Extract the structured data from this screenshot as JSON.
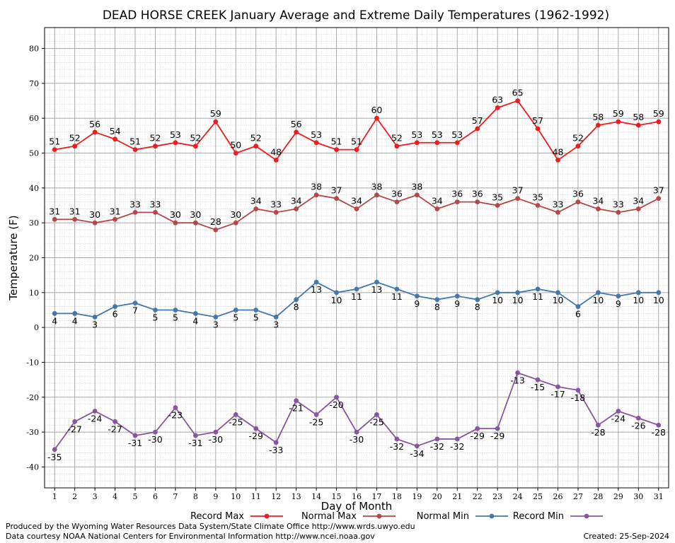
{
  "chart_data": {
    "type": "line",
    "title": "DEAD HORSE CREEK January Average and Extreme Daily Temperatures (1962-1992)",
    "xlabel": "Day of Month",
    "ylabel": "Temperature (F)",
    "xlim": [
      0.5,
      31.5
    ],
    "ylim": [
      -46,
      86
    ],
    "x_ticks": [
      1,
      2,
      3,
      4,
      5,
      6,
      7,
      8,
      9,
      10,
      11,
      12,
      13,
      14,
      15,
      16,
      17,
      18,
      19,
      20,
      21,
      22,
      23,
      24,
      25,
      26,
      27,
      28,
      29,
      30,
      31
    ],
    "y_ticks": [
      -40,
      -30,
      -20,
      -10,
      0,
      10,
      20,
      30,
      40,
      50,
      60,
      70,
      80
    ],
    "grid": true,
    "legend_position": "bottom",
    "series": [
      {
        "name": "Record Max",
        "color": "#ee1c1c",
        "label_side": "above",
        "values": [
          51,
          52,
          56,
          54,
          51,
          52,
          53,
          52,
          59,
          50,
          52,
          48,
          56,
          53,
          51,
          51,
          60,
          52,
          53,
          53,
          53,
          57,
          63,
          65,
          57,
          48,
          52,
          58,
          59,
          58,
          59
        ]
      },
      {
        "name": "Normal Max",
        "color": "#b44747",
        "label_side": "above",
        "values": [
          31,
          31,
          30,
          31,
          33,
          33,
          30,
          30,
          28,
          30,
          34,
          33,
          34,
          38,
          37,
          34,
          38,
          36,
          38,
          34,
          36,
          36,
          35,
          37,
          35,
          33,
          36,
          34,
          33,
          34,
          37
        ]
      },
      {
        "name": "Normal Min",
        "color": "#4477aa",
        "label_side": "below",
        "values": [
          4,
          4,
          3,
          6,
          7,
          5,
          5,
          4,
          3,
          5,
          5,
          3,
          8,
          13,
          10,
          11,
          13,
          11,
          9,
          8,
          9,
          8,
          10,
          10,
          11,
          10,
          6,
          10,
          9,
          10,
          10
        ]
      },
      {
        "name": "Record Min",
        "color": "#8855a0",
        "label_side": "below",
        "values": [
          -35,
          -27,
          -24,
          -27,
          -31,
          -30,
          -23,
          -31,
          -30,
          -25,
          -29,
          -33,
          -21,
          -25,
          -20,
          -30,
          -25,
          -32,
          -34,
          -32,
          -32,
          -29,
          -29,
          -13,
          -15,
          -17,
          -18,
          -28,
          -24,
          -26,
          -28
        ]
      }
    ]
  },
  "footer": {
    "line1": "Produced by the Wyoming Water Resources Data System/State Climate Office http://www.wrds.uwyo.edu",
    "line2": "Data courtesy NOAA National Centers for Environmental Information http://www.ncei.noaa.gov",
    "created": "Created:  25-Sep-2024"
  }
}
